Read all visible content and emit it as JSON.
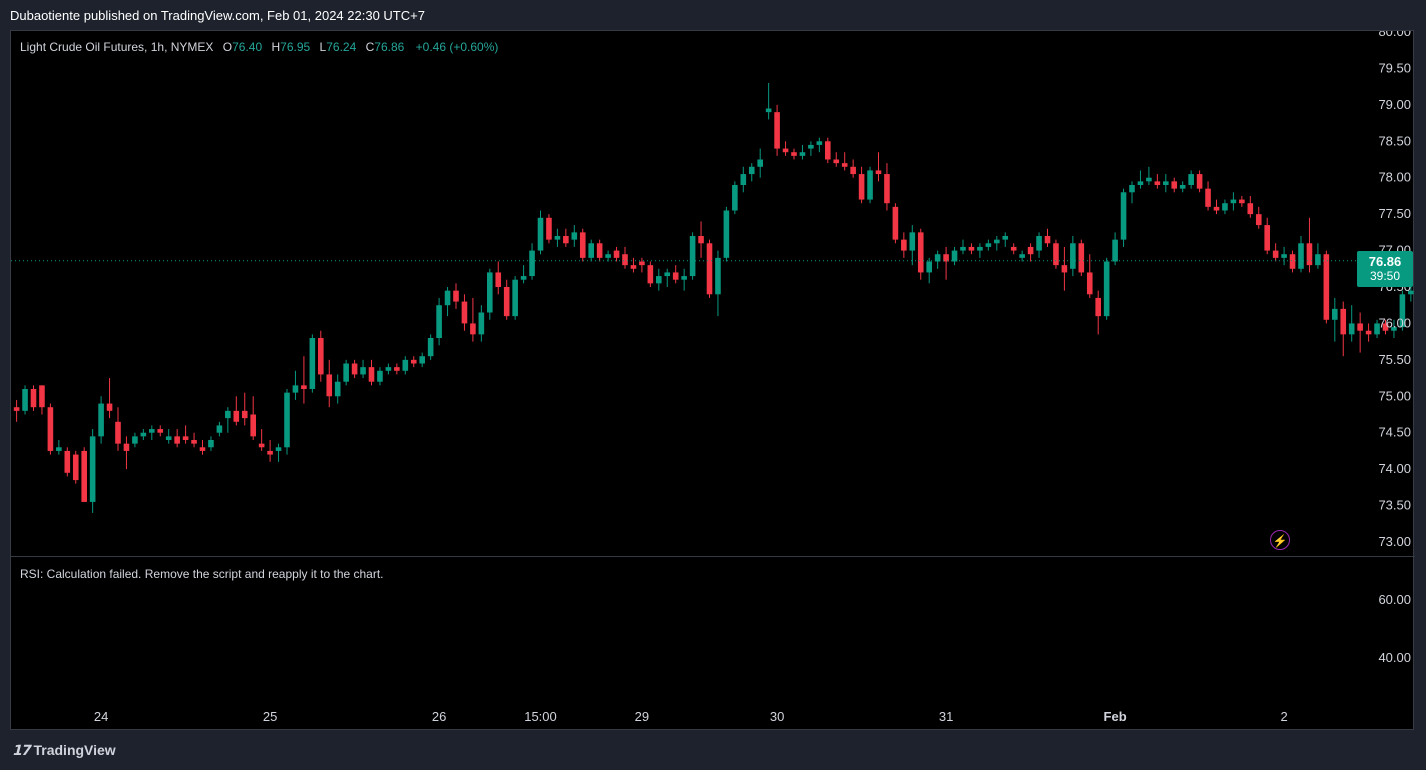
{
  "header": {
    "text": "Dubaotiente published on TradingView.com, Feb 01, 2024 22:30 UTC+7"
  },
  "legend": {
    "symbol": "Light Crude Oil Futures, 1h, NYMEX",
    "o_label": "O",
    "o": "76.40",
    "h_label": "H",
    "h": "76.95",
    "l_label": "L",
    "l": "76.24",
    "c_label": "C",
    "c": "76.86",
    "change": "+0.46 (+0.60%)"
  },
  "price_badge": {
    "price": "76.86",
    "countdown": "39:50"
  },
  "rsi": {
    "message": "RSI: Calculation failed. Remove the script and reapply it to the chart.",
    "ticks": [
      "60.00",
      "40.00"
    ]
  },
  "footer": {
    "brand": "TradingView",
    "logo_icon": "tradingview-logo-icon"
  },
  "colors": {
    "up": "#089981",
    "down": "#f23645",
    "background": "#000000",
    "frame": "#1e222d"
  },
  "chart_data": {
    "type": "candlestick",
    "y_ticks": [
      "80.00",
      "79.50",
      "79.00",
      "78.50",
      "78.00",
      "77.50",
      "77.00",
      "76.50",
      "76.00",
      "75.50",
      "75.00",
      "74.50",
      "74.00",
      "73.50",
      "73.00"
    ],
    "ylim": [
      73.0,
      80.0
    ],
    "last_price": 76.86,
    "x_ticks": [
      {
        "label": "24",
        "bar": 10,
        "bold": false
      },
      {
        "label": "25",
        "bar": 30,
        "bold": false
      },
      {
        "label": "26",
        "bar": 50,
        "bold": false
      },
      {
        "label": "15:00",
        "bar": 62,
        "bold": false
      },
      {
        "label": "29",
        "bar": 74,
        "bold": false
      },
      {
        "label": "30",
        "bar": 90,
        "bold": false
      },
      {
        "label": "31",
        "bar": 110,
        "bold": false
      },
      {
        "label": "Feb",
        "bar": 130,
        "bold": true
      },
      {
        "label": "2",
        "bar": 150,
        "bold": false
      }
    ],
    "candles": [
      [
        74.85,
        74.95,
        74.65,
        74.8
      ],
      [
        74.8,
        75.15,
        74.75,
        75.1
      ],
      [
        75.1,
        75.15,
        74.8,
        74.85
      ],
      [
        75.15,
        75.15,
        74.75,
        74.85
      ],
      [
        74.85,
        74.9,
        74.2,
        74.25
      ],
      [
        74.25,
        74.4,
        74.2,
        74.3
      ],
      [
        74.25,
        74.3,
        73.9,
        73.95
      ],
      [
        74.2,
        74.25,
        73.8,
        73.85
      ],
      [
        74.25,
        74.3,
        73.55,
        73.55
      ],
      [
        73.55,
        74.55,
        73.4,
        74.45
      ],
      [
        74.45,
        75.0,
        74.35,
        74.9
      ],
      [
        74.9,
        75.25,
        74.7,
        74.8
      ],
      [
        74.65,
        74.85,
        74.25,
        74.35
      ],
      [
        74.35,
        74.45,
        74.0,
        74.25
      ],
      [
        74.35,
        74.5,
        74.3,
        74.45
      ],
      [
        74.45,
        74.55,
        74.4,
        74.5
      ],
      [
        74.5,
        74.6,
        74.4,
        74.55
      ],
      [
        74.55,
        74.6,
        74.45,
        74.5
      ],
      [
        74.4,
        74.55,
        74.35,
        74.45
      ],
      [
        74.45,
        74.55,
        74.3,
        74.35
      ],
      [
        74.45,
        74.6,
        74.35,
        74.4
      ],
      [
        74.4,
        74.5,
        74.3,
        74.35
      ],
      [
        74.3,
        74.4,
        74.2,
        74.25
      ],
      [
        74.3,
        74.45,
        74.25,
        74.4
      ],
      [
        74.5,
        74.65,
        74.45,
        74.6
      ],
      [
        74.7,
        74.85,
        74.5,
        74.8
      ],
      [
        74.8,
        75.0,
        74.6,
        74.65
      ],
      [
        74.8,
        75.05,
        74.6,
        74.7
      ],
      [
        74.75,
        75.0,
        74.4,
        74.45
      ],
      [
        74.35,
        74.55,
        74.25,
        74.3
      ],
      [
        74.25,
        74.4,
        74.1,
        74.2
      ],
      [
        74.25,
        74.35,
        74.1,
        74.3
      ],
      [
        74.3,
        75.1,
        74.2,
        75.05
      ],
      [
        75.05,
        75.35,
        74.95,
        75.15
      ],
      [
        75.15,
        75.55,
        74.9,
        75.1
      ],
      [
        75.1,
        75.85,
        75.05,
        75.8
      ],
      [
        75.8,
        75.9,
        75.2,
        75.3
      ],
      [
        75.3,
        75.5,
        74.85,
        75.0
      ],
      [
        75.0,
        75.3,
        74.9,
        75.2
      ],
      [
        75.2,
        75.5,
        75.15,
        75.45
      ],
      [
        75.45,
        75.5,
        75.25,
        75.3
      ],
      [
        75.3,
        75.5,
        75.25,
        75.4
      ],
      [
        75.4,
        75.5,
        75.15,
        75.2
      ],
      [
        75.2,
        75.4,
        75.15,
        75.35
      ],
      [
        75.35,
        75.45,
        75.3,
        75.4
      ],
      [
        75.4,
        75.45,
        75.3,
        75.35
      ],
      [
        75.35,
        75.55,
        75.3,
        75.5
      ],
      [
        75.5,
        75.55,
        75.4,
        75.45
      ],
      [
        75.45,
        75.6,
        75.4,
        75.55
      ],
      [
        75.55,
        75.85,
        75.5,
        75.8
      ],
      [
        75.8,
        76.35,
        75.7,
        76.25
      ],
      [
        76.25,
        76.5,
        76.1,
        76.45
      ],
      [
        76.45,
        76.55,
        76.2,
        76.3
      ],
      [
        76.3,
        76.4,
        75.9,
        76.0
      ],
      [
        76.0,
        76.35,
        75.75,
        75.85
      ],
      [
        75.85,
        76.25,
        75.75,
        76.15
      ],
      [
        76.15,
        76.75,
        76.05,
        76.7
      ],
      [
        76.7,
        76.85,
        76.4,
        76.5
      ],
      [
        76.5,
        76.6,
        76.05,
        76.1
      ],
      [
        76.1,
        76.65,
        76.05,
        76.6
      ],
      [
        76.6,
        76.8,
        76.55,
        76.65
      ],
      [
        76.65,
        77.1,
        76.6,
        77.0
      ],
      [
        77.0,
        77.55,
        76.95,
        77.45
      ],
      [
        77.45,
        77.5,
        77.1,
        77.15
      ],
      [
        77.15,
        77.3,
        77.05,
        77.2
      ],
      [
        77.2,
        77.3,
        77.05,
        77.1
      ],
      [
        77.15,
        77.35,
        77.05,
        77.25
      ],
      [
        77.25,
        77.3,
        76.85,
        76.9
      ],
      [
        76.9,
        77.15,
        76.85,
        77.1
      ],
      [
        77.1,
        77.15,
        76.85,
        76.9
      ],
      [
        76.9,
        77.0,
        76.85,
        76.95
      ],
      [
        77.0,
        77.05,
        76.85,
        76.9
      ],
      [
        76.95,
        77.05,
        76.75,
        76.8
      ],
      [
        76.8,
        76.9,
        76.7,
        76.75
      ],
      [
        76.85,
        76.9,
        76.7,
        76.8
      ],
      [
        76.8,
        76.85,
        76.5,
        76.55
      ],
      [
        76.55,
        76.75,
        76.45,
        76.65
      ],
      [
        76.65,
        76.75,
        76.5,
        76.7
      ],
      [
        76.7,
        76.8,
        76.55,
        76.6
      ],
      [
        76.6,
        76.75,
        76.45,
        76.65
      ],
      [
        76.65,
        77.25,
        76.6,
        77.2
      ],
      [
        77.2,
        77.4,
        76.9,
        77.1
      ],
      [
        77.1,
        77.15,
        76.35,
        76.4
      ],
      [
        76.4,
        77.0,
        76.1,
        76.9
      ],
      [
        76.9,
        77.6,
        76.85,
        77.55
      ],
      [
        77.55,
        77.95,
        77.5,
        77.9
      ],
      [
        77.9,
        78.15,
        77.8,
        78.05
      ],
      [
        78.05,
        78.2,
        77.95,
        78.15
      ],
      [
        78.15,
        78.4,
        78.0,
        78.25
      ],
      [
        78.9,
        79.3,
        78.8,
        78.95
      ],
      [
        78.9,
        79.0,
        78.3,
        78.4
      ],
      [
        78.4,
        78.5,
        78.3,
        78.35
      ],
      [
        78.35,
        78.4,
        78.25,
        78.3
      ],
      [
        78.3,
        78.45,
        78.25,
        78.35
      ],
      [
        78.4,
        78.5,
        78.3,
        78.45
      ],
      [
        78.45,
        78.55,
        78.35,
        78.5
      ],
      [
        78.5,
        78.55,
        78.2,
        78.25
      ],
      [
        78.25,
        78.35,
        78.15,
        78.2
      ],
      [
        78.2,
        78.35,
        78.1,
        78.15
      ],
      [
        78.15,
        78.25,
        78.0,
        78.05
      ],
      [
        78.05,
        78.15,
        77.65,
        77.7
      ],
      [
        77.7,
        78.15,
        77.65,
        78.1
      ],
      [
        78.1,
        78.35,
        77.95,
        78.05
      ],
      [
        78.05,
        78.2,
        77.55,
        77.65
      ],
      [
        77.6,
        77.65,
        77.1,
        77.15
      ],
      [
        77.15,
        77.25,
        76.9,
        77.0
      ],
      [
        77.0,
        77.35,
        76.8,
        77.25
      ],
      [
        77.25,
        77.3,
        76.6,
        76.7
      ],
      [
        76.7,
        76.9,
        76.55,
        76.85
      ],
      [
        76.85,
        77.0,
        76.75,
        76.95
      ],
      [
        76.95,
        77.05,
        76.6,
        76.85
      ],
      [
        76.85,
        77.05,
        76.8,
        77.0
      ],
      [
        77.0,
        77.15,
        76.95,
        77.05
      ],
      [
        77.05,
        77.1,
        76.95,
        77.0
      ],
      [
        77.0,
        77.1,
        76.9,
        77.05
      ],
      [
        77.05,
        77.15,
        77.0,
        77.1
      ],
      [
        77.1,
        77.2,
        77.0,
        77.15
      ],
      [
        77.15,
        77.25,
        77.05,
        77.2
      ],
      [
        77.05,
        77.1,
        76.95,
        77.0
      ],
      [
        76.9,
        77.0,
        76.85,
        76.95
      ],
      [
        77.05,
        77.1,
        76.85,
        76.95
      ],
      [
        77.0,
        77.25,
        76.9,
        77.2
      ],
      [
        77.2,
        77.3,
        77.05,
        77.1
      ],
      [
        77.1,
        77.15,
        76.75,
        76.8
      ],
      [
        76.8,
        77.05,
        76.45,
        76.7
      ],
      [
        76.75,
        77.2,
        76.65,
        77.1
      ],
      [
        77.1,
        77.15,
        76.65,
        76.7
      ],
      [
        76.7,
        76.95,
        76.35,
        76.4
      ],
      [
        76.35,
        76.45,
        75.85,
        76.1
      ],
      [
        76.1,
        76.9,
        76.05,
        76.85
      ],
      [
        76.85,
        77.25,
        76.8,
        77.15
      ],
      [
        77.15,
        77.85,
        77.05,
        77.8
      ],
      [
        77.8,
        77.95,
        77.65,
        77.9
      ],
      [
        77.9,
        78.1,
        77.85,
        77.95
      ],
      [
        77.95,
        78.15,
        77.9,
        78.0
      ],
      [
        77.95,
        78.05,
        77.85,
        77.9
      ],
      [
        77.9,
        78.05,
        77.8,
        77.95
      ],
      [
        77.95,
        78.0,
        77.8,
        77.85
      ],
      [
        77.85,
        77.95,
        77.8,
        77.9
      ],
      [
        77.9,
        78.1,
        77.85,
        78.05
      ],
      [
        78.05,
        78.1,
        77.8,
        77.85
      ],
      [
        77.85,
        77.95,
        77.55,
        77.6
      ],
      [
        77.6,
        77.7,
        77.5,
        77.55
      ],
      [
        77.55,
        77.7,
        77.5,
        77.65
      ],
      [
        77.65,
        77.8,
        77.55,
        77.7
      ],
      [
        77.7,
        77.75,
        77.6,
        77.65
      ],
      [
        77.65,
        77.75,
        77.45,
        77.5
      ],
      [
        77.5,
        77.6,
        77.3,
        77.35
      ],
      [
        77.35,
        77.45,
        76.95,
        77.0
      ],
      [
        77.0,
        77.1,
        76.85,
        76.9
      ],
      [
        76.9,
        77.05,
        76.8,
        76.95
      ],
      [
        76.95,
        77.0,
        76.7,
        76.75
      ],
      [
        76.75,
        77.2,
        76.7,
        77.1
      ],
      [
        77.1,
        77.45,
        76.7,
        76.8
      ],
      [
        76.8,
        77.1,
        76.75,
        76.95
      ],
      [
        76.95,
        77.0,
        76.0,
        76.05
      ],
      [
        76.05,
        76.35,
        75.75,
        76.2
      ],
      [
        76.2,
        76.3,
        75.55,
        75.85
      ],
      [
        75.85,
        76.25,
        75.75,
        76.0
      ],
      [
        76.0,
        76.15,
        75.6,
        75.9
      ],
      [
        75.9,
        76.0,
        75.75,
        75.85
      ],
      [
        75.85,
        76.05,
        75.8,
        76.0
      ],
      [
        76.0,
        76.05,
        75.85,
        75.9
      ],
      [
        75.9,
        76.05,
        75.8,
        75.95
      ],
      [
        75.95,
        76.45,
        75.9,
        76.4
      ],
      [
        76.4,
        76.5,
        76.3,
        76.45
      ],
      [
        76.45,
        76.55,
        76.3,
        76.4
      ],
      [
        76.4,
        76.45,
        76.05,
        76.1
      ],
      [
        76.1,
        76.3,
        75.9,
        76.0
      ],
      [
        76.0,
        76.15,
        75.85,
        75.9
      ],
      [
        75.9,
        76.0,
        75.85,
        75.95
      ],
      [
        75.95,
        76.1,
        75.45,
        76.05
      ],
      [
        76.05,
        76.55,
        76.0,
        76.5
      ],
      [
        76.5,
        76.75,
        76.4,
        76.65
      ],
      [
        76.65,
        76.8,
        76.45,
        76.5
      ],
      [
        76.5,
        76.65,
        76.2,
        76.6
      ],
      [
        76.6,
        76.7,
        76.15,
        76.25
      ],
      [
        76.25,
        76.85,
        76.2,
        76.8
      ],
      [
        76.8,
        76.85,
        76.0,
        76.4
      ],
      [
        76.4,
        76.95,
        76.24,
        76.86
      ]
    ]
  }
}
